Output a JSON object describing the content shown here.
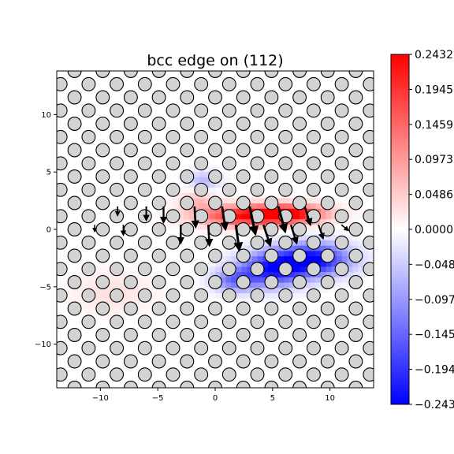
{
  "chart_data": {
    "type": "heatmap",
    "title": "bcc edge on (112)",
    "xlabel": "",
    "ylabel": "",
    "xlim": [
      -13.8,
      13.8
    ],
    "ylim": [
      -13.8,
      13.8
    ],
    "xticks": [
      -10,
      -5,
      0,
      5,
      10
    ],
    "yticks": [
      -10,
      -5,
      0,
      5,
      10
    ],
    "xtick_labels": [
      "−10",
      "−5",
      "0",
      "5",
      "10"
    ],
    "ytick_labels": [
      "−10",
      "−5",
      "0",
      "5",
      "10"
    ],
    "colormap": "bwr",
    "colors": {
      "negative": "#0000ff",
      "zero": "#ffffff",
      "positive": "#ff0000"
    },
    "colorbar": {
      "min": -0.2432,
      "max": 0.2432,
      "ticks": [
        0.2432,
        0.1945,
        0.1459,
        0.0973,
        0.0486,
        0.0,
        -0.0486,
        -0.0973,
        -0.1459,
        -0.1945,
        -0.2432
      ],
      "tick_labels": [
        "0.2432",
        "0.1945",
        "0.1459",
        "0.0973",
        "0.0486",
        "0.0000",
        "−0.0486",
        "−0.0973",
        "−0.1459",
        "−0.1945",
        "−0.2432"
      ]
    },
    "atoms": {
      "lattice_a1": [
        2.45,
        0.0
      ],
      "lattice_a2": [
        1.225,
        1.15
      ],
      "origin": [
        0.0,
        0.0
      ],
      "radius": 0.58,
      "face_color": "#d3d3d3",
      "edge_color": "#000000"
    },
    "field_blobs": [
      {
        "x": 2.4,
        "y": 1.2,
        "sx": 4.0,
        "sy": 0.9,
        "amp": 0.2
      },
      {
        "x": 6.5,
        "y": 1.4,
        "sx": 3.2,
        "sy": 0.8,
        "amp": 0.22
      },
      {
        "x": -1.5,
        "y": 2.6,
        "sx": 1.6,
        "sy": 1.0,
        "amp": 0.06
      },
      {
        "x": 8.5,
        "y": -2.6,
        "sx": 3.2,
        "sy": 1.4,
        "amp": -0.24
      },
      {
        "x": 4.8,
        "y": -3.5,
        "sx": 2.8,
        "sy": 1.5,
        "amp": -0.2
      },
      {
        "x": 1.6,
        "y": -4.4,
        "sx": 1.8,
        "sy": 1.0,
        "amp": -0.12
      },
      {
        "x": -1.0,
        "y": 4.2,
        "sx": 1.4,
        "sy": 0.9,
        "amp": -0.07
      },
      {
        "x": -9.0,
        "y": -5.5,
        "sx": 3.5,
        "sy": 1.8,
        "amp": 0.03
      }
    ],
    "displacement_arrows": [
      {
        "x": -6.0,
        "y": 2.0,
        "u": 0.0,
        "v": -1.2
      },
      {
        "x": -4.5,
        "y": 2.0,
        "u": 0.0,
        "v": -1.4
      },
      {
        "x": -1.8,
        "y": 2.0,
        "u": 0.1,
        "v": -1.8
      },
      {
        "x": 0.6,
        "y": 2.0,
        "u": 0.3,
        "v": -2.0
      },
      {
        "x": 3.0,
        "y": 2.0,
        "u": 0.5,
        "v": -2.4
      },
      {
        "x": 5.5,
        "y": 2.0,
        "u": 0.6,
        "v": -2.2
      },
      {
        "x": 7.8,
        "y": 2.0,
        "u": 0.5,
        "v": -1.6
      },
      {
        "x": -3.0,
        "y": 0.4,
        "u": 0.0,
        "v": -1.6
      },
      {
        "x": -0.6,
        "y": 0.4,
        "u": 0.1,
        "v": -1.8
      },
      {
        "x": 1.8,
        "y": 0.4,
        "u": 0.3,
        "v": -2.2
      },
      {
        "x": 4.2,
        "y": 0.4,
        "u": 0.6,
        "v": -1.8
      },
      {
        "x": 6.6,
        "y": 0.4,
        "u": 0.5,
        "v": -1.6
      },
      {
        "x": 9.0,
        "y": 0.4,
        "u": 0.4,
        "v": -1.2
      },
      {
        "x": -8.0,
        "y": 0.4,
        "u": 0.0,
        "v": -0.9
      },
      {
        "x": -10.5,
        "y": 0.4,
        "u": 0.0,
        "v": -0.6
      },
      {
        "x": -8.5,
        "y": 2.0,
        "u": 0.0,
        "v": -0.8
      },
      {
        "x": 11.0,
        "y": 0.4,
        "u": 0.6,
        "v": -0.5
      }
    ]
  }
}
